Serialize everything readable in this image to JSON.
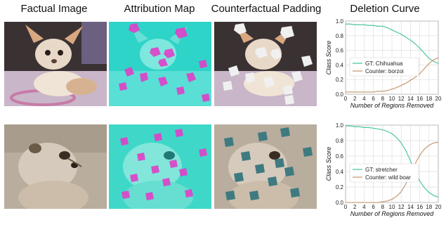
{
  "columns": {
    "factual": "Factual Image",
    "attribution": "Attribution Map",
    "counterfactual": "Counterfactual Padding",
    "deletion": "Deletion Curve"
  },
  "colors": {
    "gt_line": "#5cc9a7",
    "counter_line": "#c9a27e",
    "attribution_tint": "#2fd4c8",
    "attribution_blob": "#e040c8",
    "pad_light": "#f0f0f0",
    "pad_dark": "#3f7a80"
  },
  "chart_data": [
    {
      "type": "line",
      "title": "",
      "xlabel": "Number of Regions Removed",
      "ylabel": "Class Score",
      "xlim": [
        0,
        20
      ],
      "ylim": [
        0,
        1.0
      ],
      "xticks": [
        0,
        2,
        4,
        6,
        8,
        10,
        12,
        14,
        16,
        18,
        20
      ],
      "yticks": [
        0.0,
        0.2,
        0.4,
        0.6,
        0.8,
        1.0
      ],
      "grid": true,
      "legend": "middle-left",
      "x": [
        0,
        1,
        2,
        3,
        4,
        5,
        6,
        7,
        8,
        9,
        10,
        11,
        12,
        13,
        14,
        15,
        16,
        17,
        18,
        19,
        20
      ],
      "series": [
        {
          "name": "GT: Chihuahua",
          "values": [
            0.96,
            0.96,
            0.95,
            0.95,
            0.95,
            0.94,
            0.94,
            0.93,
            0.93,
            0.91,
            0.88,
            0.85,
            0.82,
            0.78,
            0.74,
            0.69,
            0.63,
            0.56,
            0.49,
            0.45,
            0.42
          ]
        },
        {
          "name": "Counter: borzoi",
          "values": [
            0.03,
            0.03,
            0.03,
            0.03,
            0.03,
            0.03,
            0.03,
            0.04,
            0.04,
            0.05,
            0.07,
            0.09,
            0.12,
            0.15,
            0.19,
            0.23,
            0.28,
            0.35,
            0.42,
            0.47,
            0.5
          ]
        }
      ]
    },
    {
      "type": "line",
      "title": "",
      "xlabel": "Number of Regions Removed",
      "ylabel": "Class Score",
      "xlim": [
        0,
        20
      ],
      "ylim": [
        0,
        1.0
      ],
      "xticks": [
        0,
        2,
        4,
        6,
        8,
        10,
        12,
        14,
        16,
        18,
        20
      ],
      "yticks": [
        0.0,
        0.2,
        0.4,
        0.6,
        0.8,
        1.0
      ],
      "grid": true,
      "legend": "middle-left",
      "x": [
        0,
        1,
        2,
        3,
        4,
        5,
        6,
        7,
        8,
        9,
        10,
        11,
        12,
        13,
        14,
        15,
        16,
        17,
        18,
        19,
        20
      ],
      "series": [
        {
          "name": "GT: stretcher",
          "values": [
            0.99,
            0.99,
            0.98,
            0.98,
            0.97,
            0.97,
            0.96,
            0.95,
            0.94,
            0.92,
            0.89,
            0.84,
            0.77,
            0.67,
            0.54,
            0.4,
            0.28,
            0.19,
            0.13,
            0.09,
            0.07
          ]
        },
        {
          "name": "Counter: wild boar",
          "values": [
            0.0,
            0.0,
            0.0,
            0.0,
            0.0,
            0.0,
            0.0,
            0.0,
            0.01,
            0.02,
            0.04,
            0.08,
            0.14,
            0.24,
            0.37,
            0.5,
            0.61,
            0.69,
            0.74,
            0.77,
            0.78
          ]
        }
      ]
    }
  ]
}
